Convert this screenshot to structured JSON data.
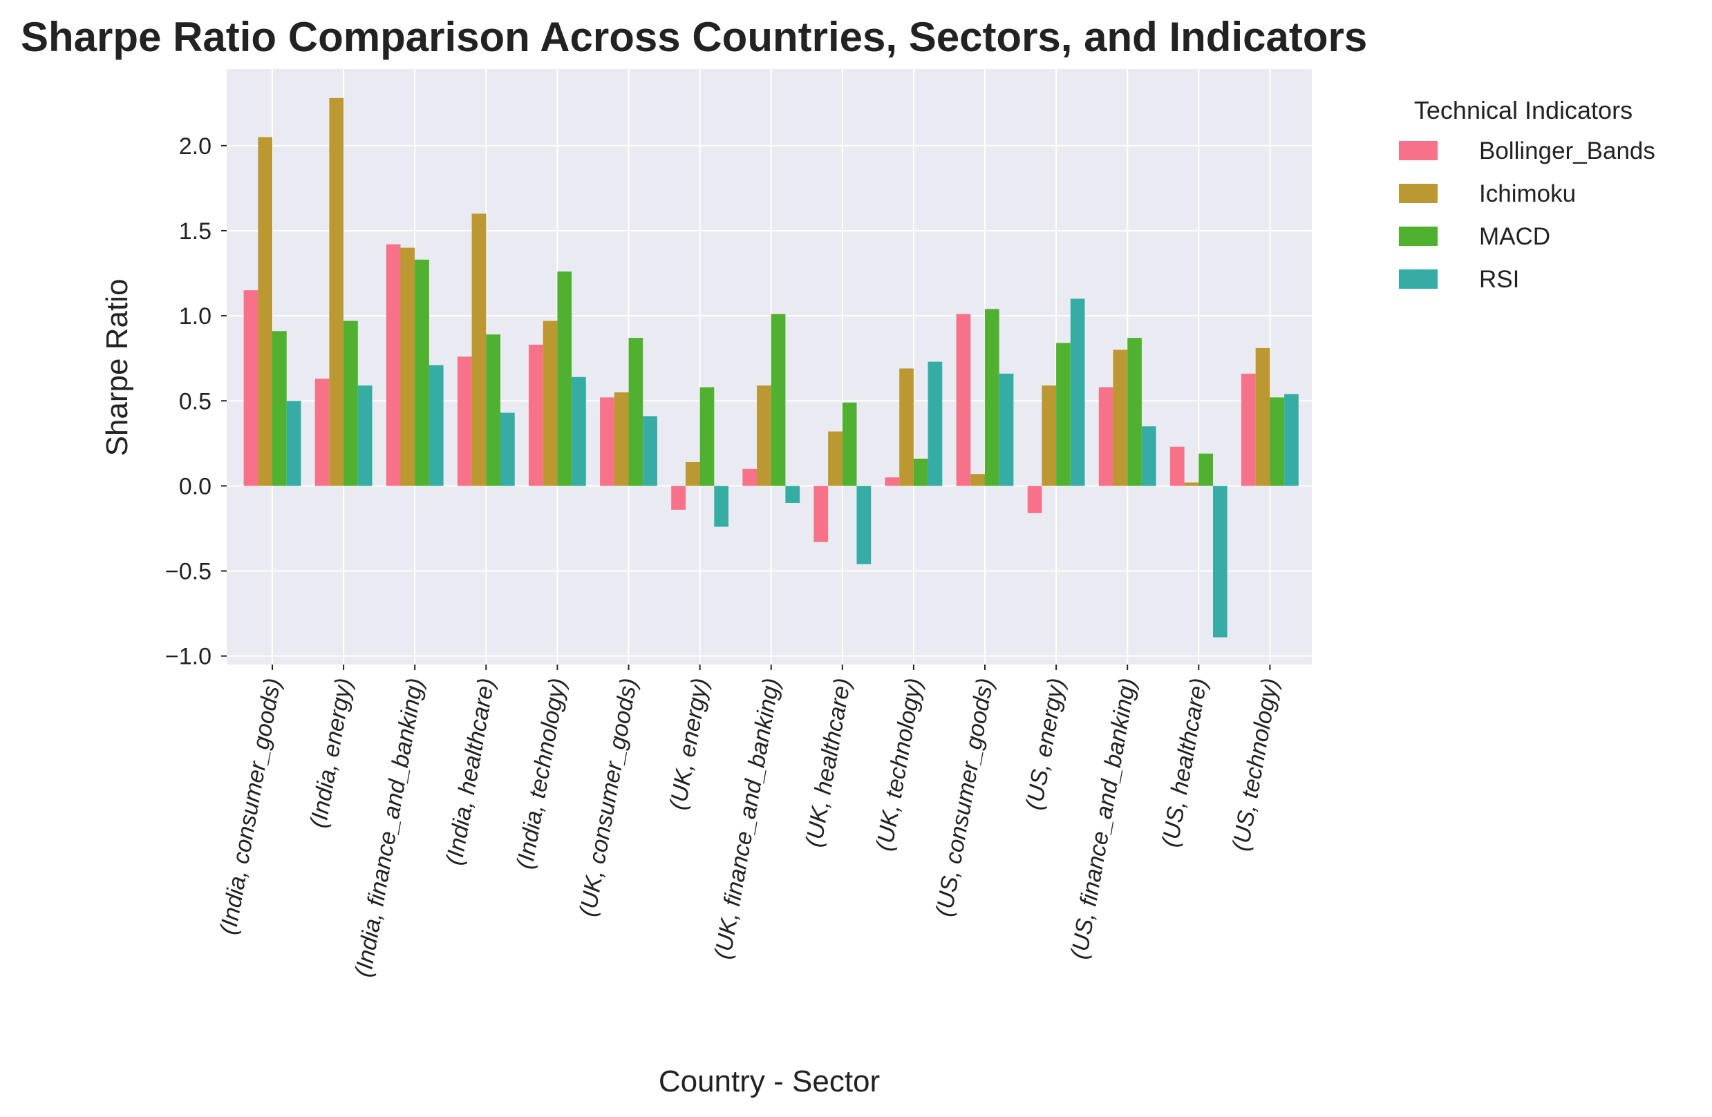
{
  "chart_data": {
    "type": "bar",
    "title": "Sharpe Ratio Comparison Across Countries, Sectors, and Indicators",
    "xlabel": "Country - Sector",
    "ylabel": "Sharpe Ratio",
    "ylim": [
      -1.05,
      2.45
    ],
    "yticks": [
      -1.0,
      -0.5,
      0.0,
      0.5,
      1.0,
      1.5,
      2.0
    ],
    "ytick_labels": [
      "−1.0",
      "−0.5",
      "0.0",
      "0.5",
      "1.0",
      "1.5",
      "2.0"
    ],
    "grid": true,
    "legend": {
      "title": "Technical Indicators",
      "placement": "outside-right"
    },
    "categories": [
      "(India, consumer_goods)",
      "(India, energy)",
      "(India, finance_and_banking)",
      "(India, healthcare)",
      "(India, technology)",
      "(UK, consumer_goods)",
      "(UK, energy)",
      "(UK, finance_and_banking)",
      "(UK, healthcare)",
      "(UK, technology)",
      "(US, consumer_goods)",
      "(US, energy)",
      "(US, finance_and_banking)",
      "(US, healthcare)",
      "(US, technology)"
    ],
    "series": [
      {
        "name": "Bollinger_Bands",
        "color": "#f77189",
        "values": [
          1.15,
          0.63,
          1.42,
          0.76,
          0.83,
          0.52,
          -0.14,
          0.1,
          -0.33,
          0.05,
          1.01,
          -0.16,
          0.58,
          0.23,
          0.66
        ]
      },
      {
        "name": "Ichimoku",
        "color": "#bb9832",
        "values": [
          2.05,
          2.28,
          1.4,
          1.6,
          0.97,
          0.55,
          0.14,
          0.59,
          0.32,
          0.69,
          0.07,
          0.59,
          0.8,
          0.02,
          0.81
        ]
      },
      {
        "name": "MACD",
        "color": "#50b131",
        "values": [
          0.91,
          0.97,
          1.33,
          0.89,
          1.26,
          0.87,
          0.58,
          1.01,
          0.49,
          0.16,
          1.04,
          0.84,
          0.87,
          0.19,
          0.52
        ]
      },
      {
        "name": "RSI",
        "color": "#36ada4",
        "values": [
          0.5,
          0.59,
          0.71,
          0.43,
          0.64,
          0.41,
          -0.24,
          -0.1,
          -0.46,
          0.73,
          0.66,
          1.1,
          0.35,
          -0.89,
          0.54
        ]
      }
    ]
  }
}
